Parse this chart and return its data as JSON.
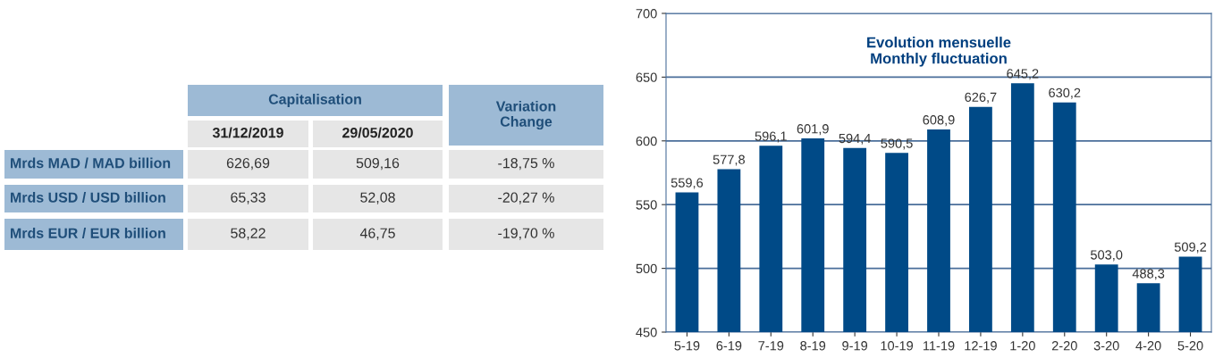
{
  "chart_data": [
    {
      "type": "other",
      "title": "Capitalisation",
      "categories": [
        "31/12/2019",
        "29/05/2020",
        "Variation\nChange"
      ],
      "y_categories": [
        "Mrds MAD / MAD billion",
        "Mrds USD / USD billion",
        "Mrds EUR / EUR billion"
      ],
      "cell_labels": [
        [
          "626,69",
          "509,16",
          "-18,75 %"
        ],
        [
          "65,33",
          "52,08",
          "-20,27 %"
        ],
        [
          "58,22",
          "46,75",
          "-19,70 %"
        ]
      ]
    },
    {
      "type": "bar",
      "title": "Evolution mensuelle\nMonthly fluctuation",
      "categories": [
        "5-19",
        "6-19",
        "7-19",
        "8-19",
        "9-19",
        "10-19",
        "11-19",
        "12-19",
        "1-20",
        "2-20",
        "3-20",
        "4-20",
        "5-20"
      ],
      "values": [
        559.6,
        577.8,
        596.1,
        601.9,
        594.4,
        590.5,
        608.9,
        626.7,
        645.2,
        630.2,
        503.0,
        488.3,
        509.2
      ],
      "value_labels": [
        "559,6",
        "577,8",
        "596,1",
        "601,9",
        "594,4",
        "590,5",
        "608,9",
        "626,7",
        "645,2",
        "630,2",
        "503,0",
        "488,3",
        "509,2"
      ],
      "color": "#004a87",
      "ylim": [
        450,
        700
      ],
      "yticks": [
        450,
        500,
        550,
        600,
        650,
        700
      ],
      "grid": "y"
    }
  ]
}
